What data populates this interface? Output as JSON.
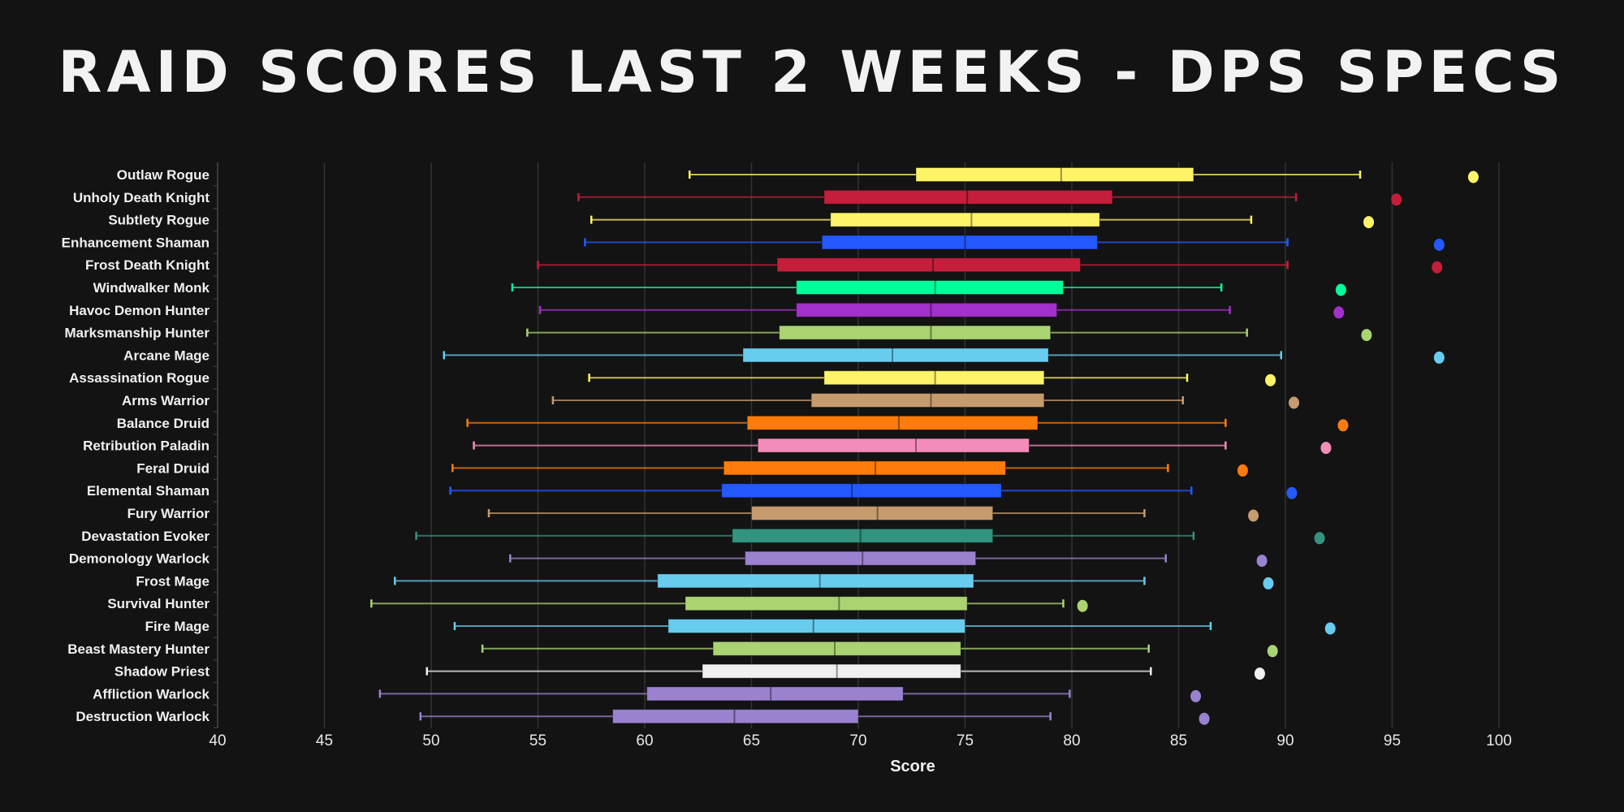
{
  "chart_data": {
    "type": "boxplot",
    "title": "Raid Scores Last 2 Weeks - DPS Specs",
    "xlabel": "Score",
    "ylabel": "",
    "xlim": [
      40,
      100
    ],
    "xticks": [
      40,
      45,
      50,
      55,
      60,
      65,
      70,
      75,
      80,
      85,
      90,
      95,
      100
    ],
    "grid": true,
    "background": "#131313",
    "series": [
      {
        "category": "Outlaw Rogue",
        "min": 62.1,
        "q1": 72.7,
        "median": 79.5,
        "q3": 85.7,
        "max": 93.5,
        "outlier": 98.8,
        "color": "#fff468"
      },
      {
        "category": "Unholy Death Knight",
        "min": 56.9,
        "q1": 68.4,
        "median": 75.1,
        "q3": 81.9,
        "max": 90.5,
        "outlier": 95.2,
        "color": "#c41e3a"
      },
      {
        "category": "Subtlety Rogue",
        "min": 57.5,
        "q1": 68.7,
        "median": 75.3,
        "q3": 81.3,
        "max": 88.4,
        "outlier": 93.9,
        "color": "#fff468"
      },
      {
        "category": "Enhancement Shaman",
        "min": 57.2,
        "q1": 68.3,
        "median": 75.0,
        "q3": 81.2,
        "max": 90.1,
        "outlier": 97.2,
        "color": "#2359ff"
      },
      {
        "category": "Frost Death Knight",
        "min": 55.0,
        "q1": 66.2,
        "median": 73.5,
        "q3": 80.4,
        "max": 90.1,
        "outlier": 97.1,
        "color": "#c41e3a"
      },
      {
        "category": "Windwalker Monk",
        "min": 53.8,
        "q1": 67.1,
        "median": 73.6,
        "q3": 79.6,
        "max": 87.0,
        "outlier": 92.6,
        "color": "#00ff98"
      },
      {
        "category": "Havoc Demon Hunter",
        "min": 55.1,
        "q1": 67.1,
        "median": 73.4,
        "q3": 79.3,
        "max": 87.4,
        "outlier": 92.5,
        "color": "#a330c9"
      },
      {
        "category": "Marksmanship Hunter",
        "min": 54.5,
        "q1": 66.3,
        "median": 73.4,
        "q3": 79.0,
        "max": 88.2,
        "outlier": 93.8,
        "color": "#aad372"
      },
      {
        "category": "Arcane Mage",
        "min": 50.6,
        "q1": 64.6,
        "median": 71.6,
        "q3": 78.9,
        "max": 89.8,
        "outlier": 97.2,
        "color": "#68ccef"
      },
      {
        "category": "Assassination Rogue",
        "min": 57.4,
        "q1": 68.4,
        "median": 73.6,
        "q3": 78.7,
        "max": 85.4,
        "outlier": 89.3,
        "color": "#fff468"
      },
      {
        "category": "Arms Warrior",
        "min": 55.7,
        "q1": 67.8,
        "median": 73.4,
        "q3": 78.7,
        "max": 85.2,
        "outlier": 90.4,
        "color": "#c69b6d"
      },
      {
        "category": "Balance Druid",
        "min": 51.7,
        "q1": 64.8,
        "median": 71.9,
        "q3": 78.4,
        "max": 87.2,
        "outlier": 92.7,
        "color": "#ff7c0a"
      },
      {
        "category": "Retribution Paladin",
        "min": 52.0,
        "q1": 65.3,
        "median": 72.7,
        "q3": 78.0,
        "max": 87.2,
        "outlier": 91.9,
        "color": "#f48cba"
      },
      {
        "category": "Feral Druid",
        "min": 51.0,
        "q1": 63.7,
        "median": 70.8,
        "q3": 76.9,
        "max": 84.5,
        "outlier": 88.0,
        "color": "#ff7c0a"
      },
      {
        "category": "Elemental Shaman",
        "min": 50.9,
        "q1": 63.6,
        "median": 69.7,
        "q3": 76.7,
        "max": 85.6,
        "outlier": 90.3,
        "color": "#2359ff"
      },
      {
        "category": "Fury Warrior",
        "min": 52.7,
        "q1": 65.0,
        "median": 70.9,
        "q3": 76.3,
        "max": 83.4,
        "outlier": 88.5,
        "color": "#c69b6d"
      },
      {
        "category": "Devastation Evoker",
        "min": 49.3,
        "q1": 64.1,
        "median": 70.1,
        "q3": 76.3,
        "max": 85.7,
        "outlier": 91.6,
        "color": "#33937f"
      },
      {
        "category": "Demonology Warlock",
        "min": 53.7,
        "q1": 64.7,
        "median": 70.2,
        "q3": 75.5,
        "max": 84.4,
        "outlier": 88.9,
        "color": "#9b82d0"
      },
      {
        "category": "Frost Mage",
        "min": 48.3,
        "q1": 60.6,
        "median": 68.2,
        "q3": 75.4,
        "max": 83.4,
        "outlier": 89.2,
        "color": "#68ccef"
      },
      {
        "category": "Survival Hunter",
        "min": 47.2,
        "q1": 61.9,
        "median": 69.1,
        "q3": 75.1,
        "max": 79.6,
        "outlier": 80.5,
        "color": "#aad372"
      },
      {
        "category": "Fire Mage",
        "min": 51.1,
        "q1": 61.1,
        "median": 67.9,
        "q3": 75.0,
        "max": 86.5,
        "outlier": 92.1,
        "color": "#68ccef"
      },
      {
        "category": "Beast Mastery Hunter",
        "min": 52.4,
        "q1": 63.2,
        "median": 68.9,
        "q3": 74.8,
        "max": 83.6,
        "outlier": 89.4,
        "color": "#aad372"
      },
      {
        "category": "Shadow Priest",
        "min": 49.8,
        "q1": 62.7,
        "median": 69.0,
        "q3": 74.8,
        "max": 83.7,
        "outlier": 88.8,
        "color": "#f0f0f0"
      },
      {
        "category": "Affliction Warlock",
        "min": 47.6,
        "q1": 60.1,
        "median": 65.9,
        "q3": 72.1,
        "max": 79.9,
        "outlier": 85.8,
        "color": "#9b82d0"
      },
      {
        "category": "Destruction Warlock",
        "min": 49.5,
        "q1": 58.5,
        "median": 64.2,
        "q3": 70.0,
        "max": 79.0,
        "outlier": 86.2,
        "color": "#9b82d0"
      }
    ]
  }
}
